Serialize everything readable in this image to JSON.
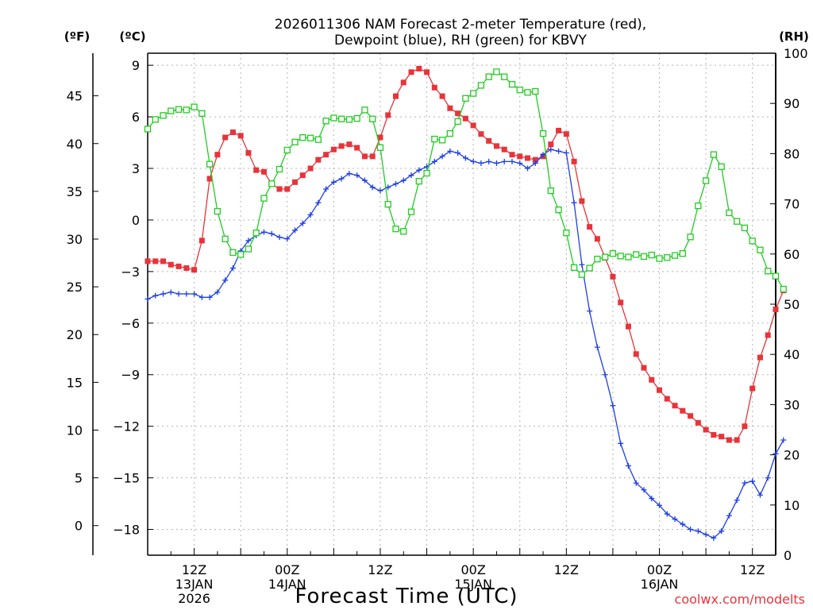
{
  "chart_data": {
    "type": "line",
    "title_line1": "2026011306 NAM Forecast 2-meter Temperature (red),",
    "title_line2": "Dewpoint (blue), RH (green) for KBVY",
    "xlabel": "Forecast Time (UTC)",
    "credit": "coolwx.com/modelts",
    "axis_f_label": "(ºF)",
    "axis_c_label": "(ºC)",
    "axis_rh_label": "(RH)",
    "x_range_hours": [
      0,
      81
    ],
    "celsius_range": [
      -19.5,
      9.7
    ],
    "rh_range": [
      0,
      100
    ],
    "celsius_ticks": [
      "9",
      "6",
      "3",
      "0",
      "−3",
      "−6",
      "−9",
      "−12",
      "−15",
      "−18"
    ],
    "fahrenheit_ticks": [
      "45",
      "40",
      "35",
      "30",
      "25",
      "20",
      "15",
      "10",
      "5",
      "0"
    ],
    "rh_ticks": [
      "100",
      "90",
      "80",
      "70",
      "60",
      "50",
      "40",
      "30",
      "20",
      "10",
      "0"
    ],
    "x_ticks": [
      {
        "hour": 6,
        "lines": [
          "12Z",
          "13JAN",
          "2026"
        ]
      },
      {
        "hour": 18,
        "lines": [
          "00Z",
          "14JAN"
        ]
      },
      {
        "hour": 30,
        "lines": [
          "12Z"
        ]
      },
      {
        "hour": 42,
        "lines": [
          "00Z",
          "15JAN"
        ]
      },
      {
        "hour": 54,
        "lines": [
          "12Z"
        ]
      },
      {
        "hour": 66,
        "lines": [
          "00Z",
          "16JAN"
        ]
      },
      {
        "hour": 78,
        "lines": [
          "12Z"
        ]
      }
    ],
    "series": [
      {
        "name": "Temperature",
        "unit": "°C",
        "color": "#e8333a",
        "marker": "filled-square",
        "values": [
          -2.4,
          -2.4,
          -2.4,
          -2.6,
          -2.7,
          -2.8,
          -2.9,
          -1.2,
          2.4,
          3.8,
          4.8,
          5.1,
          4.9,
          3.9,
          2.9,
          2.8,
          2.1,
          1.8,
          1.8,
          2.2,
          2.6,
          3.0,
          3.5,
          3.8,
          4.1,
          4.3,
          4.4,
          4.2,
          3.7,
          3.7,
          4.8,
          6.1,
          7.2,
          8.0,
          8.6,
          8.8,
          8.6,
          7.7,
          7.2,
          6.5,
          6.2,
          5.9,
          5.5,
          5.0,
          4.6,
          4.3,
          4.1,
          3.8,
          3.7,
          3.6,
          3.5,
          3.7,
          4.4,
          5.2,
          5.0,
          3.4,
          1.1,
          -0.4,
          -1.1,
          -2.2,
          -3.3,
          -4.8,
          -6.2,
          -7.8,
          -8.6,
          -9.3,
          -9.9,
          -10.4,
          -10.8,
          -11.1,
          -11.4,
          -11.8,
          -12.2,
          -12.5,
          -12.6,
          -12.8,
          -12.8,
          -12.0,
          -9.8,
          -8.0,
          -6.7,
          -5.2,
          -4.1
        ]
      },
      {
        "name": "Dewpoint",
        "unit": "°C",
        "color": "#1f3fe6",
        "marker": "plus",
        "values": [
          -4.6,
          -4.4,
          -4.3,
          -4.2,
          -4.3,
          -4.3,
          -4.3,
          -4.5,
          -4.5,
          -4.2,
          -3.5,
          -2.8,
          -1.8,
          -1.2,
          -0.9,
          -0.7,
          -0.8,
          -1.0,
          -1.1,
          -0.6,
          -0.2,
          0.3,
          1.0,
          1.8,
          2.2,
          2.4,
          2.7,
          2.6,
          2.3,
          1.9,
          1.7,
          1.9,
          2.1,
          2.3,
          2.6,
          2.9,
          3.1,
          3.4,
          3.7,
          4.0,
          3.9,
          3.6,
          3.4,
          3.3,
          3.4,
          3.3,
          3.4,
          3.4,
          3.3,
          3.0,
          3.3,
          3.8,
          4.1,
          4.0,
          3.9,
          1.0,
          -2.6,
          -5.3,
          -7.4,
          -9.0,
          -10.8,
          -13.0,
          -14.3,
          -15.3,
          -15.7,
          -16.2,
          -16.6,
          -17.1,
          -17.4,
          -17.7,
          -18.0,
          -18.1,
          -18.3,
          -18.5,
          -18.1,
          -17.2,
          -16.3,
          -15.3,
          -15.2,
          -16.0,
          -15.0,
          -13.6,
          -12.8
        ]
      },
      {
        "name": "RH",
        "unit": "%",
        "color": "#22cc22",
        "marker": "open-square",
        "values": [
          84.9,
          86.8,
          87.6,
          88.5,
          88.8,
          88.7,
          89.3,
          88.0,
          77.9,
          68.5,
          63.0,
          60.3,
          59.9,
          61.0,
          64.2,
          71.1,
          74.0,
          76.9,
          80.7,
          82.3,
          83.2,
          83.1,
          82.8,
          86.5,
          87.1,
          86.9,
          86.8,
          87.0,
          88.7,
          86.9,
          81.2,
          69.9,
          65.0,
          64.5,
          68.4,
          74.5,
          76.1,
          82.9,
          82.7,
          84.0,
          86.4,
          91.0,
          92.0,
          93.6,
          95.3,
          96.3,
          95.3,
          93.8,
          92.7,
          92.2,
          92.4,
          84.0,
          72.6,
          68.8,
          64.2,
          57.3,
          55.9,
          57.2,
          59.0,
          59.4,
          60.1,
          59.6,
          59.4,
          59.9,
          59.5,
          59.8,
          59.1,
          59.3,
          59.7,
          60.1,
          63.4,
          69.6,
          74.6,
          79.8,
          77.4,
          68.2,
          66.5,
          65.2,
          62.6,
          60.8,
          56.6,
          55.6,
          53.0
        ]
      }
    ]
  }
}
